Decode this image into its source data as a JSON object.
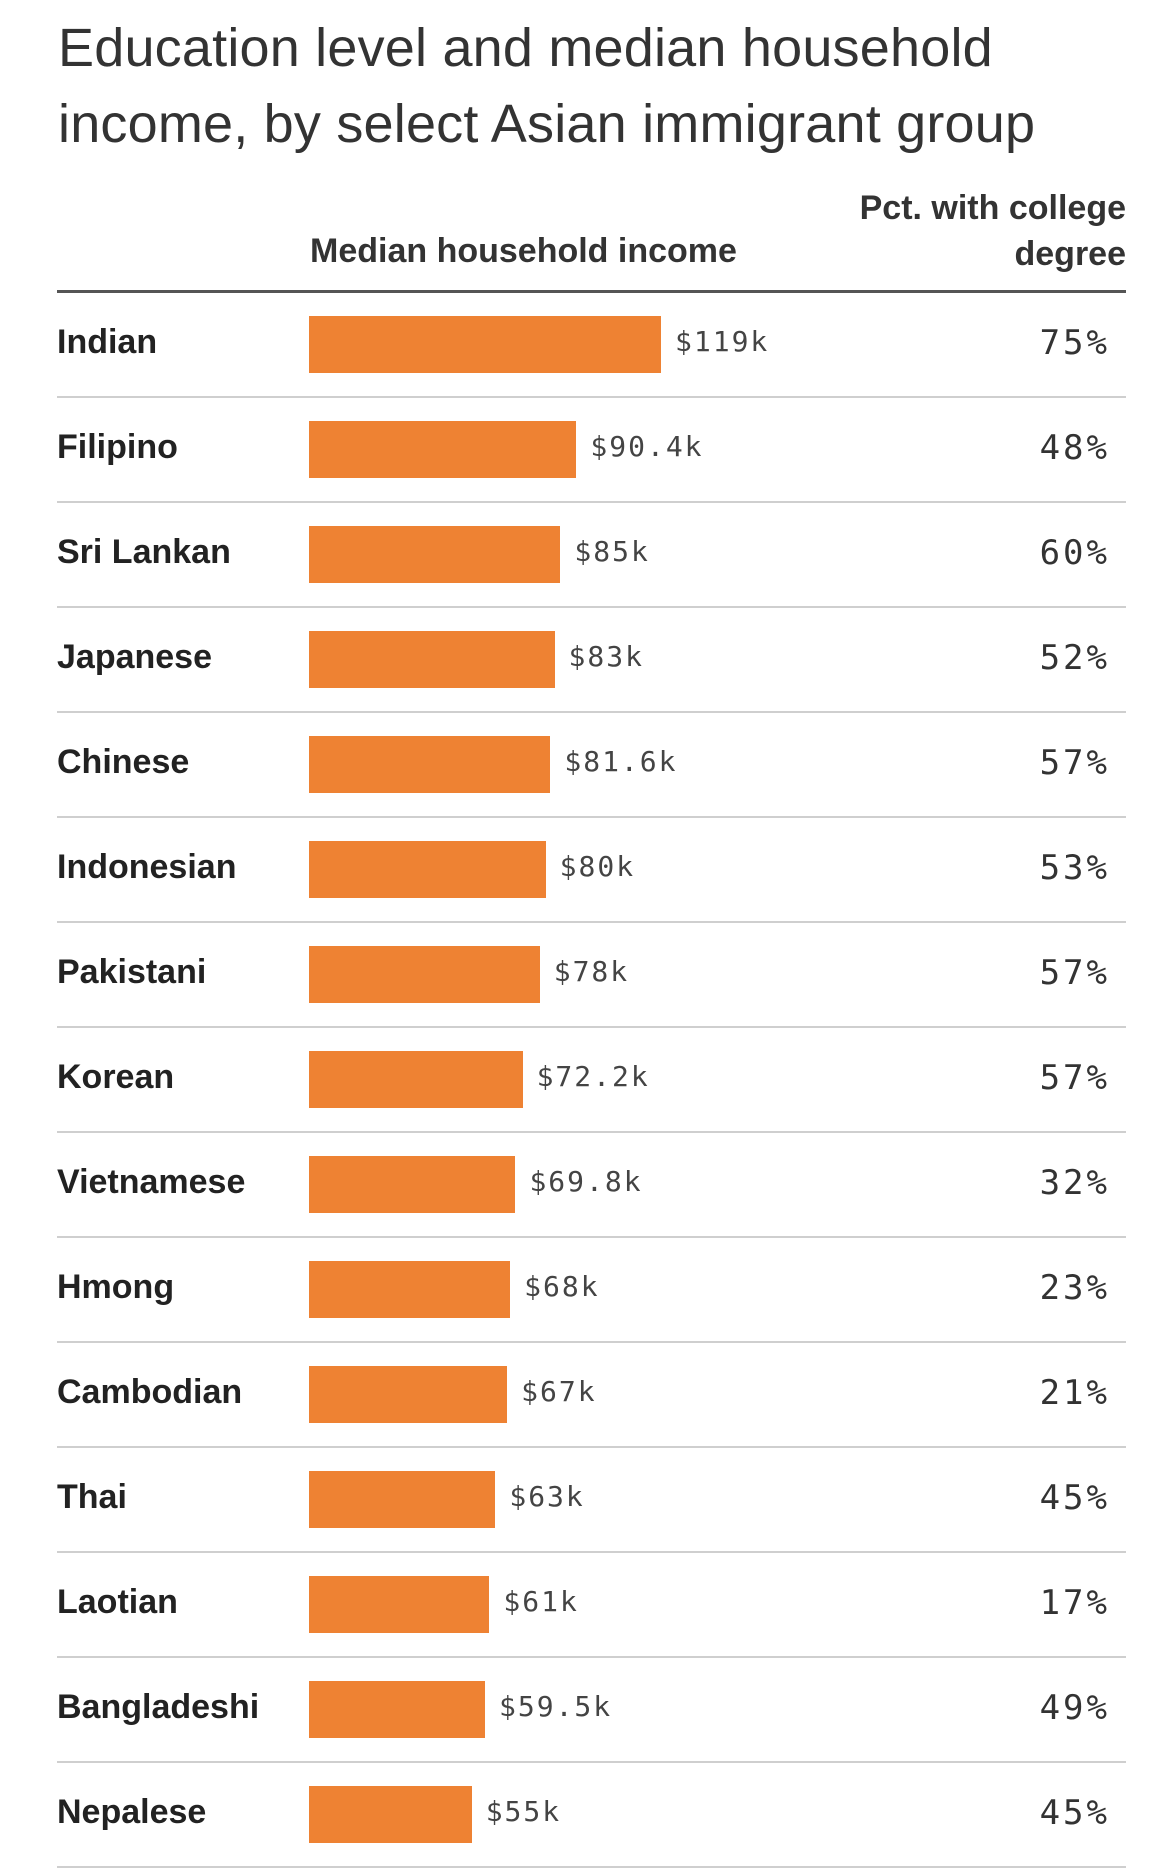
{
  "header": {
    "title": "Education level and median household income, by select Asian immigrant group",
    "income_column": "Median household income",
    "pct_column": "Pct. with college degree"
  },
  "colors": {
    "bar": "#ee8233"
  },
  "chart_data": {
    "type": "bar",
    "orientation": "horizontal",
    "title": "Education level and median household income, by select Asian immigrant group",
    "categories": [
      "Indian",
      "Filipino",
      "Sri Lankan",
      "Japanese",
      "Chinese",
      "Indonesian",
      "Pakistani",
      "Korean",
      "Vietnamese",
      "Hmong",
      "Cambodian",
      "Thai",
      "Laotian",
      "Bangladeshi",
      "Nepalese"
    ],
    "series": [
      {
        "name": "Median household income",
        "values": [
          119,
          90.4,
          85,
          83,
          81.6,
          80,
          78,
          72.2,
          69.8,
          68,
          67,
          63,
          61,
          59.5,
          55
        ],
        "labels": [
          "$119k",
          "$90.4k",
          "$85k",
          "$83k",
          "$81.6k",
          "$80k",
          "$78k",
          "$72.2k",
          "$69.8k",
          "$68k",
          "$67k",
          "$63k",
          "$61k",
          "$59.5k",
          "$55k"
        ]
      },
      {
        "name": "Pct. with college degree",
        "values": [
          75,
          48,
          60,
          52,
          57,
          53,
          57,
          57,
          32,
          23,
          21,
          45,
          17,
          49,
          45
        ],
        "labels": [
          "75%",
          "48%",
          "60%",
          "52%",
          "57%",
          "53%",
          "57%",
          "57%",
          "32%",
          "23%",
          "21%",
          "45%",
          "17%",
          "49%",
          "45%"
        ]
      }
    ]
  }
}
